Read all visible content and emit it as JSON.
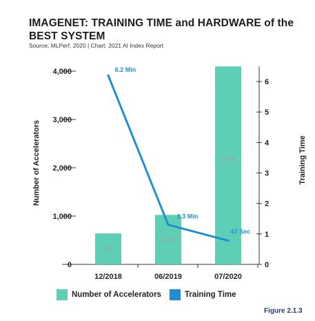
{
  "title": "IMAGENET: TRAINING TIME and HARDWARE of the BEST SYSTEM",
  "source": "Source: MLPerf, 2020 | Chart: 2021 AI Index Report",
  "figure_label": "Figure 2.1.3",
  "colors": {
    "bar": "#5ecfb6",
    "line": "#1f8fd3",
    "axis": "#333333",
    "bar_label": "#9aa3a8",
    "line_label": "#1f8fd3"
  },
  "chart_data": {
    "type": "bar",
    "categories": [
      "12/2018",
      "06/2019",
      "07/2020"
    ],
    "series": [
      {
        "name": "Number of Accelerators",
        "type": "bar",
        "axis": "left",
        "values": [
          640,
          1024,
          4096
        ],
        "labels": [
          "640",
          "1,024",
          "4,096"
        ]
      },
      {
        "name": "Training Time",
        "type": "line",
        "axis": "right",
        "values": [
          6.2,
          1.3,
          0.78
        ],
        "labels": [
          "6.2 Min",
          "1.3 Min",
          "47 Sec"
        ]
      }
    ],
    "ylabel": "Number of Accelerators",
    "y2label": "Training Time",
    "ylim": [
      0,
      4100
    ],
    "y2lim": [
      0,
      6.5
    ],
    "yticks": [
      0,
      1000,
      2000,
      3000,
      4000
    ],
    "yticklabels": [
      "0",
      "1,000",
      "2,000",
      "3,000",
      "4,000"
    ],
    "y2ticks": [
      0,
      1,
      2,
      3,
      4,
      5,
      6
    ],
    "y2ticklabels": [
      "0",
      "1",
      "2",
      "3",
      "4",
      "5",
      "6"
    ],
    "legend": "bottom"
  }
}
